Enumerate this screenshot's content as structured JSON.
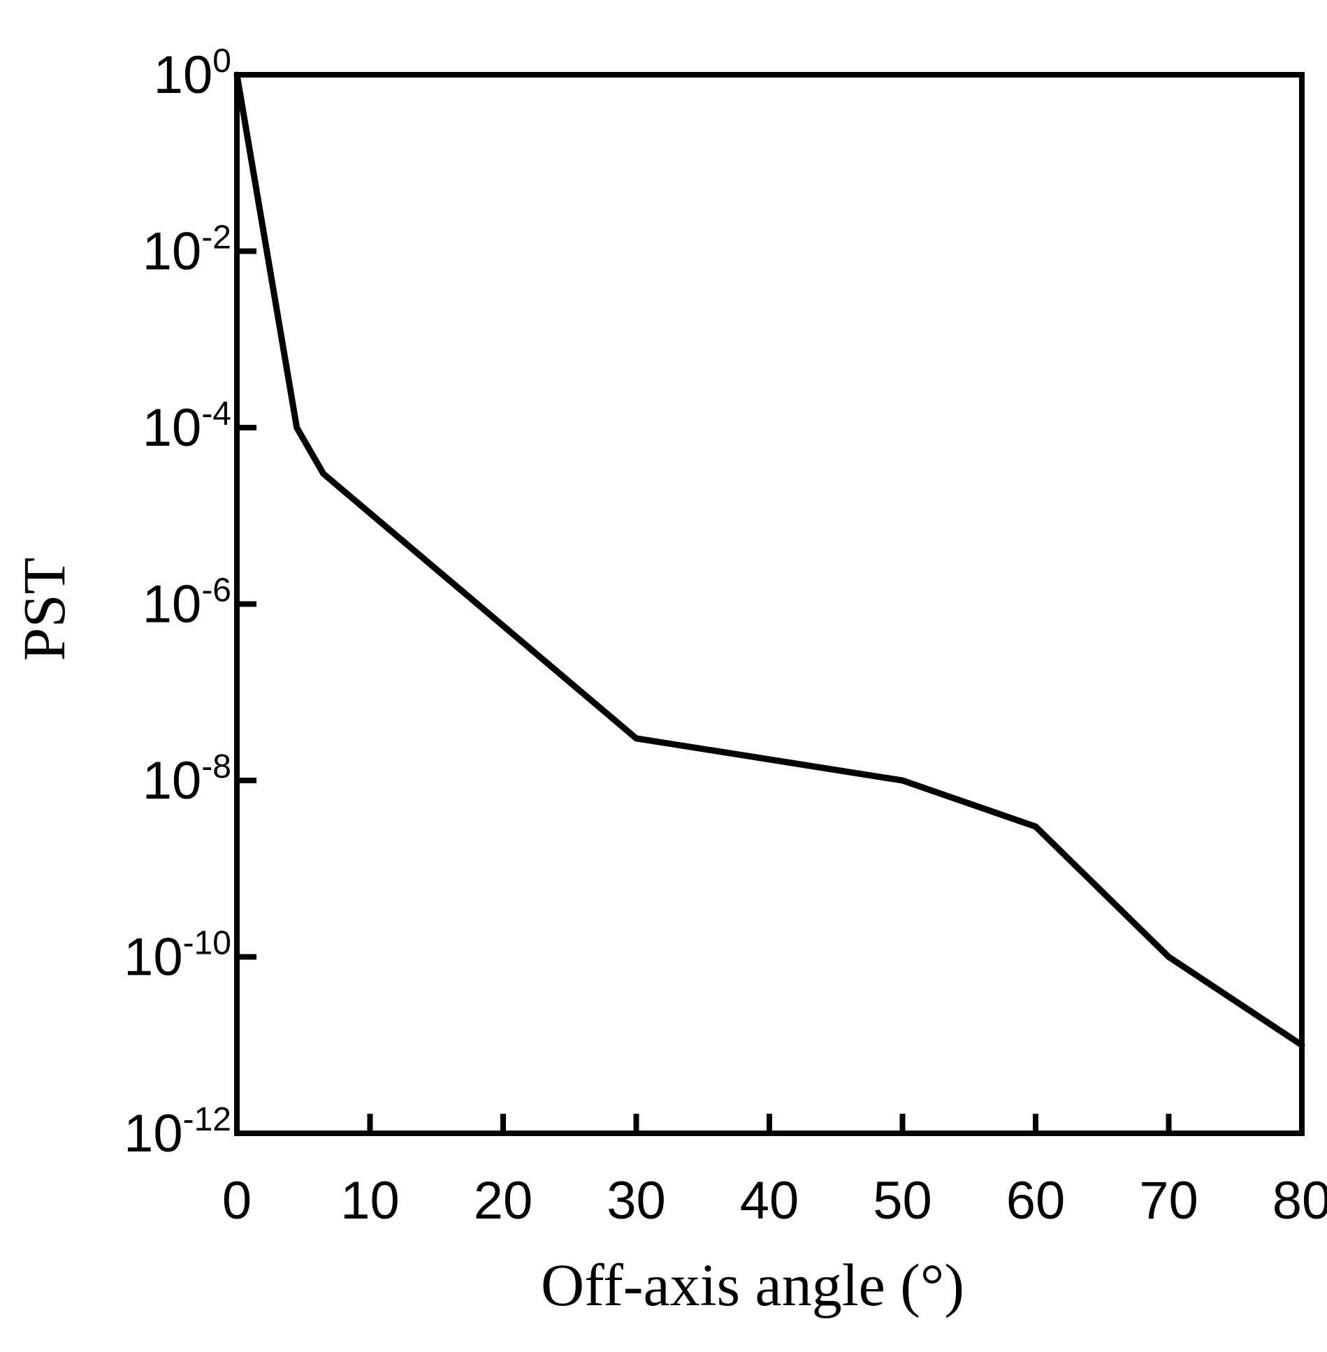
{
  "chart_data": {
    "type": "line",
    "title": "",
    "xlabel": "Off-axis angle (°)",
    "ylabel": "PST",
    "xlim": [
      0,
      80
    ],
    "ylim": [
      1e-12,
      1
    ],
    "yscale": "log",
    "grid": false,
    "line_color": "#000000",
    "x_ticks": [
      0,
      10,
      20,
      30,
      40,
      50,
      60,
      70,
      80
    ],
    "x_tick_labels": [
      "0",
      "10",
      "20",
      "30",
      "40",
      "50",
      "60",
      "70",
      "80"
    ],
    "y_ticks": [
      {
        "value": 1,
        "base": "10",
        "exp": "0"
      },
      {
        "value": 0.01,
        "base": "10",
        "exp": "-2"
      },
      {
        "value": 0.0001,
        "base": "10",
        "exp": "-4"
      },
      {
        "value": 1e-06,
        "base": "10",
        "exp": "-6"
      },
      {
        "value": 1e-08,
        "base": "10",
        "exp": "-8"
      },
      {
        "value": 1e-10,
        "base": "10",
        "exp": "-10"
      },
      {
        "value": 1e-12,
        "base": "10",
        "exp": "-12"
      }
    ],
    "series": [
      {
        "x": [
          0,
          4.5,
          6.5,
          30,
          50,
          60,
          70,
          80
        ],
        "y": [
          1,
          0.0001,
          3e-05,
          3e-08,
          1e-08,
          3e-09,
          1e-10,
          1e-11
        ]
      }
    ]
  }
}
